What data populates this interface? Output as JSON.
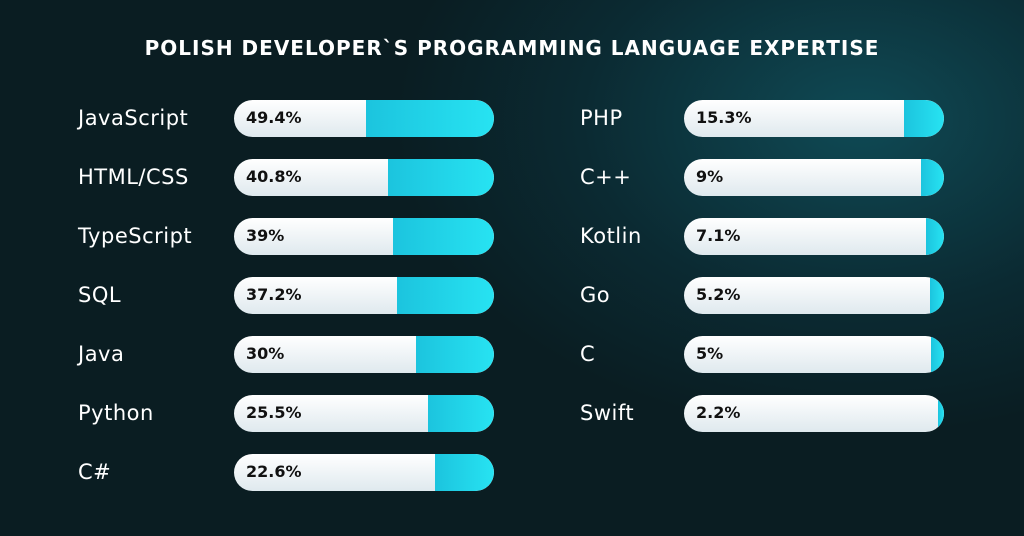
{
  "chart_data": {
    "type": "bar",
    "title": "POLISH DEVELOPER`S PROGRAMMING LANGUAGE EXPERTISE",
    "unit": "%",
    "xlim": [
      0,
      100
    ],
    "colors": {
      "fill": "#22d6ea",
      "track": "#ffffff",
      "background": "#0a1d22"
    },
    "columns": [
      {
        "categories": [
          "JavaScript",
          "HTML/CSS",
          "TypeScript",
          "SQL",
          "Java",
          "Python",
          "C#"
        ],
        "values": [
          49.4,
          40.8,
          39,
          37.2,
          30,
          25.5,
          22.6
        ],
        "labels": [
          "49.4%",
          "40.8%",
          "39%",
          "37.2%",
          "30%",
          "25.5%",
          "22.6%"
        ]
      },
      {
        "categories": [
          "PHP",
          "C++",
          "Kotlin",
          "Go",
          "C",
          "Swift"
        ],
        "values": [
          15.3,
          9,
          7.1,
          5.2,
          5,
          2.2
        ],
        "labels": [
          "15.3%",
          "9%",
          "7.1%",
          "5.2%",
          "5%",
          "2.2%"
        ]
      }
    ]
  }
}
